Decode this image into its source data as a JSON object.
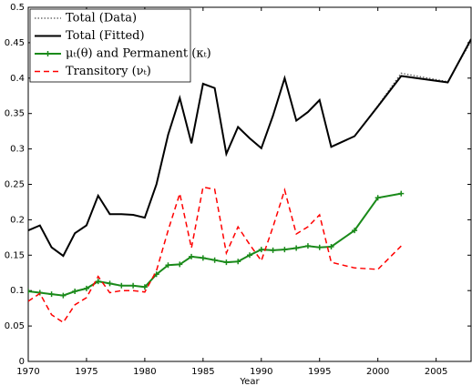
{
  "chart_data": {
    "type": "line",
    "x_label": "Year",
    "x": [
      1970,
      1971,
      1972,
      1973,
      1974,
      1975,
      1976,
      1977,
      1978,
      1979,
      1980,
      1981,
      1982,
      1983,
      1984,
      1985,
      1986,
      1987,
      1988,
      1989,
      1990,
      1991,
      1992,
      1993,
      1994,
      1995,
      1996,
      1998,
      2000,
      2002,
      2006,
      2008
    ],
    "series": [
      {
        "name": "Total (Data)",
        "color": "#555555",
        "style": "dotted",
        "values": [
          0.185,
          0.192,
          0.161,
          0.149,
          0.181,
          0.192,
          0.234,
          0.208,
          0.208,
          0.207,
          0.203,
          0.25,
          0.32,
          0.372,
          0.308,
          0.392,
          0.386,
          0.293,
          0.331,
          0.315,
          0.301,
          0.347,
          0.4,
          0.34,
          0.352,
          0.369,
          0.303,
          0.318,
          0.361,
          0.407,
          0.395,
          0.452
        ]
      },
      {
        "name": "Total (Fitted)",
        "color": "#000000",
        "style": "solid",
        "values": [
          0.185,
          0.192,
          0.161,
          0.149,
          0.181,
          0.192,
          0.234,
          0.208,
          0.208,
          0.207,
          0.203,
          0.25,
          0.32,
          0.372,
          0.308,
          0.392,
          0.386,
          0.293,
          0.331,
          0.315,
          0.301,
          0.347,
          0.4,
          0.34,
          0.352,
          0.369,
          0.303,
          0.318,
          0.36,
          0.403,
          0.394,
          0.455
        ]
      },
      {
        "name": "μₜ(θ) and Permanent (κₜ)",
        "color": "#1a8a1a",
        "style": "marker",
        "values": [
          0.099,
          0.097,
          0.095,
          0.093,
          0.099,
          0.103,
          0.113,
          0.11,
          0.107,
          0.107,
          0.105,
          0.123,
          0.136,
          0.137,
          0.148,
          0.146,
          0.143,
          0.14,
          0.141,
          0.15,
          0.158,
          0.157,
          0.158,
          0.16,
          0.163,
          0.161,
          0.162,
          0.185,
          0.231,
          0.237,
          null,
          null
        ]
      },
      {
        "name": "Transitory (νₜ)",
        "color": "#ff0000",
        "style": "dashed",
        "values": [
          0.085,
          0.096,
          0.066,
          0.055,
          0.08,
          0.09,
          0.12,
          0.097,
          0.1,
          0.1,
          0.098,
          0.128,
          0.185,
          0.237,
          0.16,
          0.246,
          0.243,
          0.153,
          0.19,
          0.165,
          0.142,
          0.19,
          0.242,
          0.18,
          0.19,
          0.207,
          0.14,
          0.132,
          0.13,
          0.163,
          null,
          null
        ]
      }
    ],
    "xlim": [
      1970,
      2008
    ],
    "xticks": [
      1970,
      1975,
      1980,
      1985,
      1990,
      1995,
      2000,
      2005
    ],
    "ylim": [
      0,
      0.5
    ],
    "yticks": [
      0,
      0.05,
      0.1,
      0.15,
      0.2,
      0.25,
      0.3,
      0.35,
      0.4,
      0.45,
      0.5
    ],
    "grid": false,
    "legend": "upper left"
  }
}
